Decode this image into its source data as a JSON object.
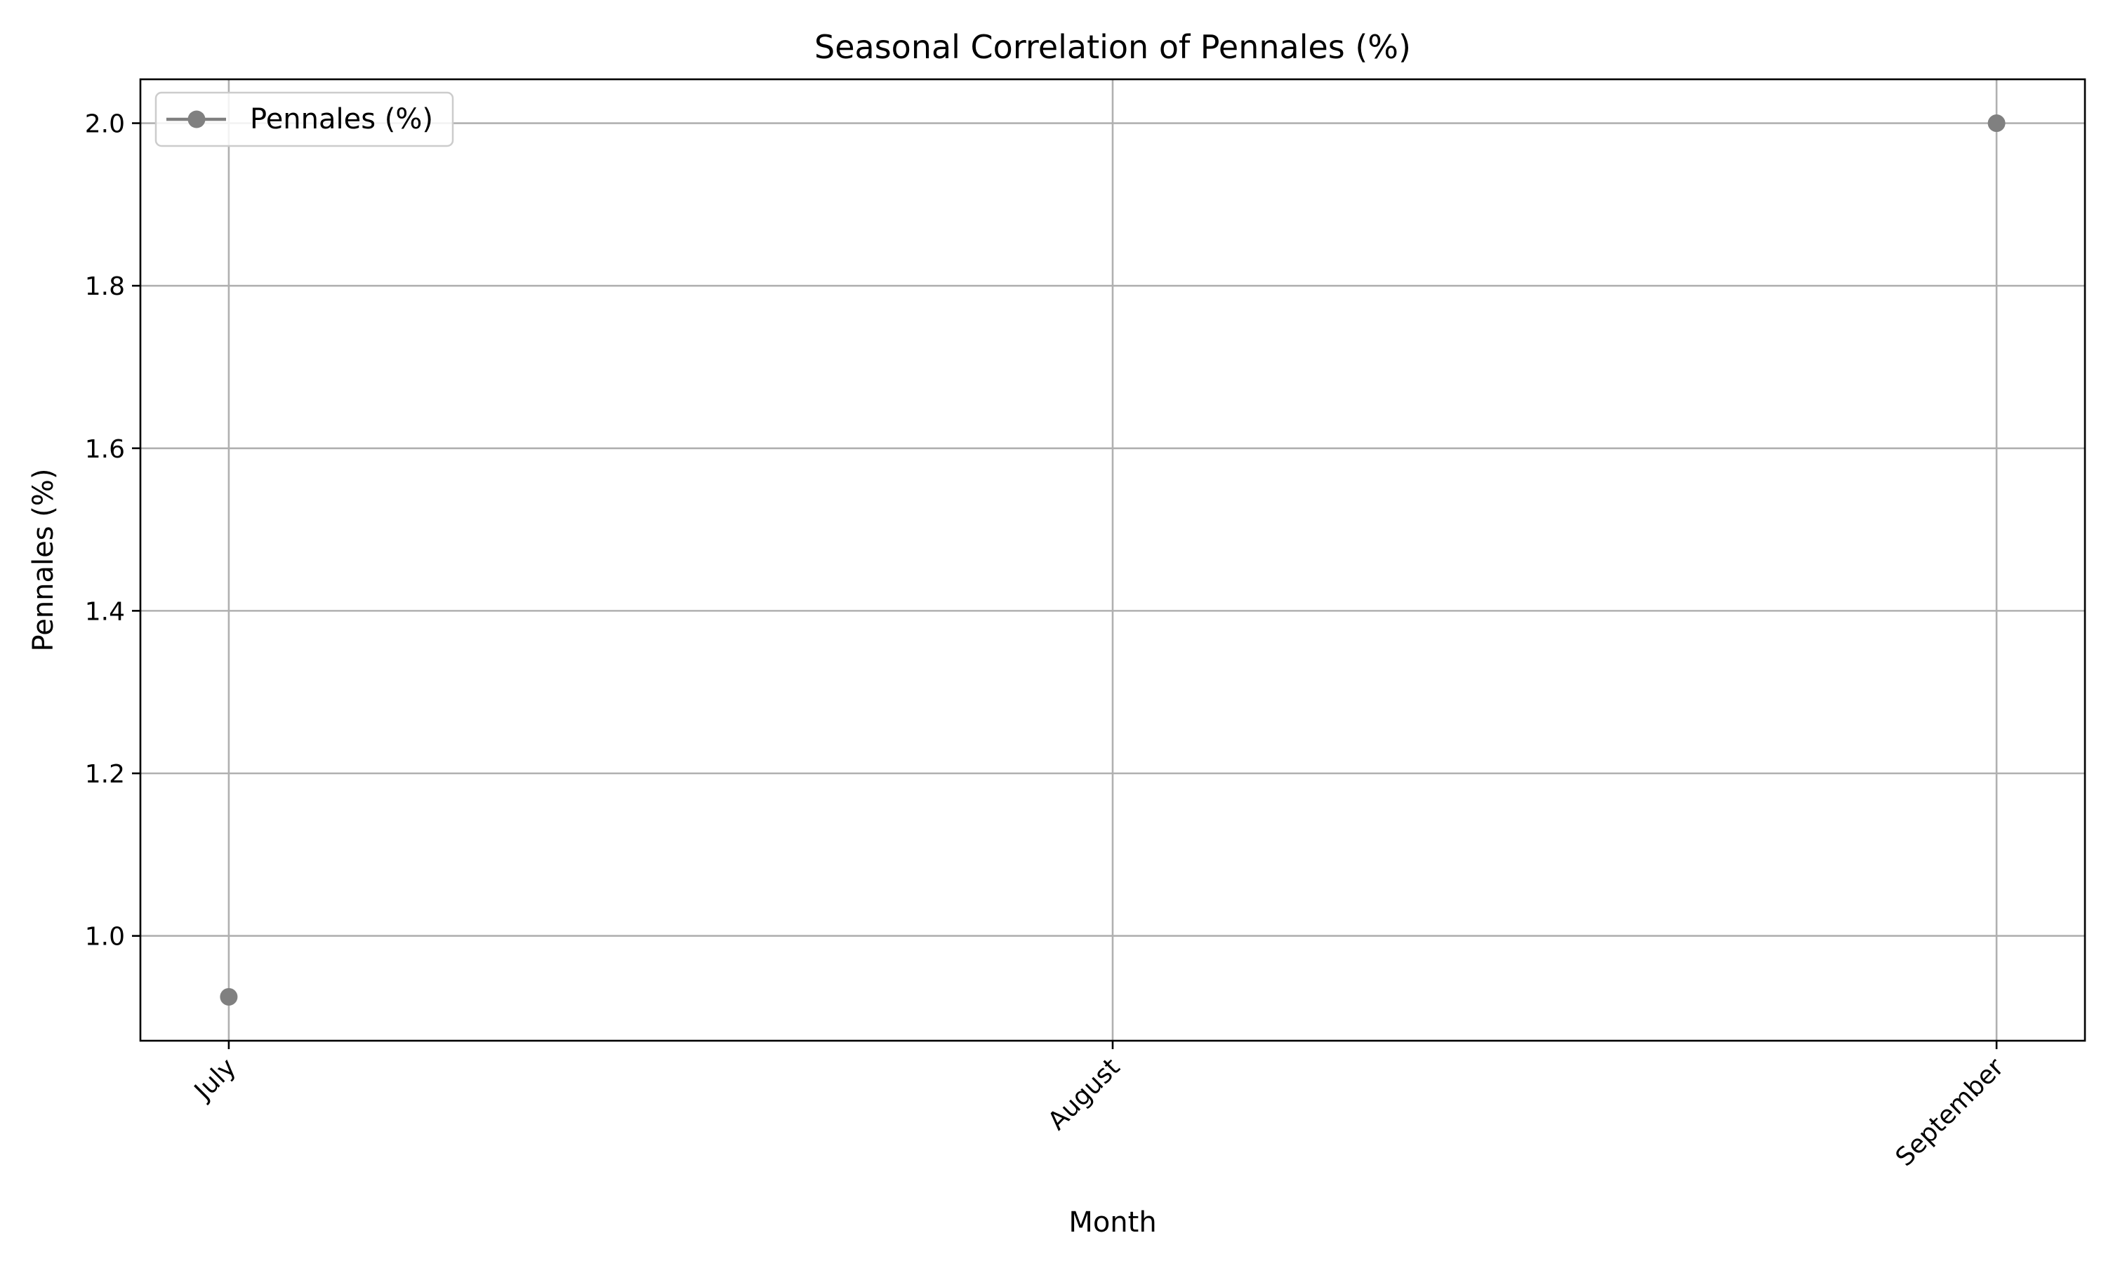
{
  "chart_data": {
    "type": "line",
    "title": "Seasonal Correlation of Pennales (%)",
    "xlabel": "Month",
    "ylabel": "Pennales (%)",
    "categories": [
      "July",
      "August",
      "September"
    ],
    "series": [
      {
        "name": "Pennales (%)",
        "values": [
          0.925,
          null,
          2.0
        ],
        "color": "#808080",
        "marker": "circle"
      }
    ],
    "xlim": [
      -0.1,
      2.1
    ],
    "ylim": [
      0.871,
      2.054
    ],
    "yticks": [
      1.0,
      1.2,
      1.4,
      1.6,
      1.8,
      2.0
    ],
    "ytick_labels": [
      "1.0",
      "1.2",
      "1.4",
      "1.6",
      "1.8",
      "2.0"
    ],
    "grid": true,
    "legend": "top-left",
    "xtick_rotation": 45,
    "colors": {
      "grid": "#b0b0b0",
      "axes": "#000000",
      "background": "#ffffff"
    }
  }
}
